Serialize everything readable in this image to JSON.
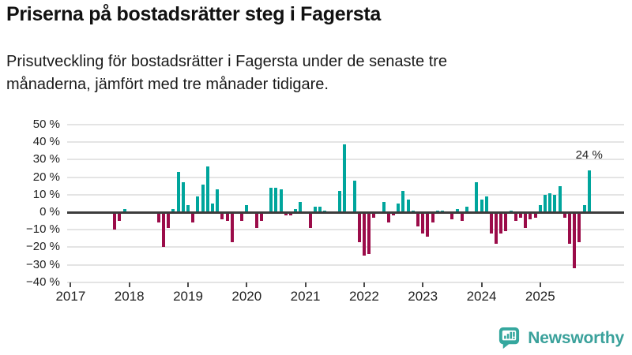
{
  "chart_data": {
    "type": "bar",
    "title": "Priserna på bostadsrätter steg i Fagersta",
    "subtitle": "Prisutveckling för bostadsrätter i Fagersta under de senaste tre\nmånaderna, jämfört med tre månader tidigare.",
    "unit": "%",
    "ylim": [
      -40,
      50
    ],
    "yticks": [
      50,
      40,
      30,
      20,
      10,
      0,
      -10,
      -20,
      -30,
      -40
    ],
    "ytick_labels": [
      "50 %",
      "40 %",
      "30 %",
      "20 %",
      "10 %",
      "0 %",
      "−10 %",
      "−20 %",
      "−30 %",
      "−40 %"
    ],
    "xticks": [
      2017,
      2018,
      2019,
      2020,
      2021,
      2022,
      2023,
      2024,
      2025
    ],
    "grid": true,
    "legend": "none",
    "colors": {
      "positive": "#00a59c",
      "negative": "#9b0c49"
    },
    "annotation": {
      "text": "24 %",
      "month": "2025-11",
      "value": 24
    },
    "points": [
      [
        "2017-10",
        -10
      ],
      [
        "2017-11",
        -5
      ],
      [
        "2017-12",
        2
      ],
      [
        "2018-07",
        -6
      ],
      [
        "2018-08",
        -20
      ],
      [
        "2018-09",
        -9
      ],
      [
        "2018-10",
        2
      ],
      [
        "2018-11",
        23
      ],
      [
        "2018-12",
        17
      ],
      [
        "2019-01",
        4
      ],
      [
        "2019-02",
        -6
      ],
      [
        "2019-03",
        9
      ],
      [
        "2019-04",
        16
      ],
      [
        "2019-05",
        26
      ],
      [
        "2019-06",
        5
      ],
      [
        "2019-07",
        13
      ],
      [
        "2019-08",
        -4
      ],
      [
        "2019-09",
        -5
      ],
      [
        "2019-10",
        -17
      ],
      [
        "2019-11",
        -1
      ],
      [
        "2019-12",
        -5
      ],
      [
        "2020-01",
        4
      ],
      [
        "2020-03",
        -9
      ],
      [
        "2020-04",
        -5
      ],
      [
        "2020-06",
        14
      ],
      [
        "2020-07",
        14
      ],
      [
        "2020-08",
        13
      ],
      [
        "2020-09",
        -2
      ],
      [
        "2020-10",
        -2
      ],
      [
        "2020-11",
        2
      ],
      [
        "2020-12",
        6
      ],
      [
        "2021-01",
        -1
      ],
      [
        "2021-02",
        -9
      ],
      [
        "2021-03",
        3
      ],
      [
        "2021-04",
        3
      ],
      [
        "2021-05",
        1
      ],
      [
        "2021-08",
        12
      ],
      [
        "2021-09",
        39
      ],
      [
        "2021-11",
        18
      ],
      [
        "2021-12",
        -17
      ],
      [
        "2022-01",
        -25
      ],
      [
        "2022-02",
        -24
      ],
      [
        "2022-03",
        -3
      ],
      [
        "2022-05",
        6
      ],
      [
        "2022-06",
        -6
      ],
      [
        "2022-07",
        -2
      ],
      [
        "2022-08",
        5
      ],
      [
        "2022-09",
        12
      ],
      [
        "2022-10",
        7
      ],
      [
        "2022-11",
        1
      ],
      [
        "2022-12",
        -8
      ],
      [
        "2023-01",
        -12
      ],
      [
        "2023-02",
        -14
      ],
      [
        "2023-03",
        -6
      ],
      [
        "2023-04",
        1
      ],
      [
        "2023-05",
        1
      ],
      [
        "2023-06",
        -1
      ],
      [
        "2023-07",
        -4
      ],
      [
        "2023-08",
        2
      ],
      [
        "2023-09",
        -5
      ],
      [
        "2023-10",
        3
      ],
      [
        "2023-11",
        -1
      ],
      [
        "2023-12",
        17
      ],
      [
        "2024-01",
        7
      ],
      [
        "2024-02",
        9
      ],
      [
        "2024-03",
        -12
      ],
      [
        "2024-04",
        -18
      ],
      [
        "2024-05",
        -12
      ],
      [
        "2024-06",
        -11
      ],
      [
        "2024-07",
        1
      ],
      [
        "2024-08",
        -5
      ],
      [
        "2024-09",
        -3
      ],
      [
        "2024-10",
        -9
      ],
      [
        "2024-11",
        -4
      ],
      [
        "2024-12",
        -3
      ],
      [
        "2025-01",
        4
      ],
      [
        "2025-02",
        10
      ],
      [
        "2025-03",
        11
      ],
      [
        "2025-04",
        10
      ],
      [
        "2025-05",
        15
      ],
      [
        "2025-06",
        -3
      ],
      [
        "2025-07",
        -18
      ],
      [
        "2025-08",
        -32
      ],
      [
        "2025-09",
        -17
      ],
      [
        "2025-10",
        4
      ],
      [
        "2025-11",
        24
      ]
    ]
  },
  "footer": {
    "brand": "Newsworthy",
    "logo_color": "#35a79e"
  }
}
